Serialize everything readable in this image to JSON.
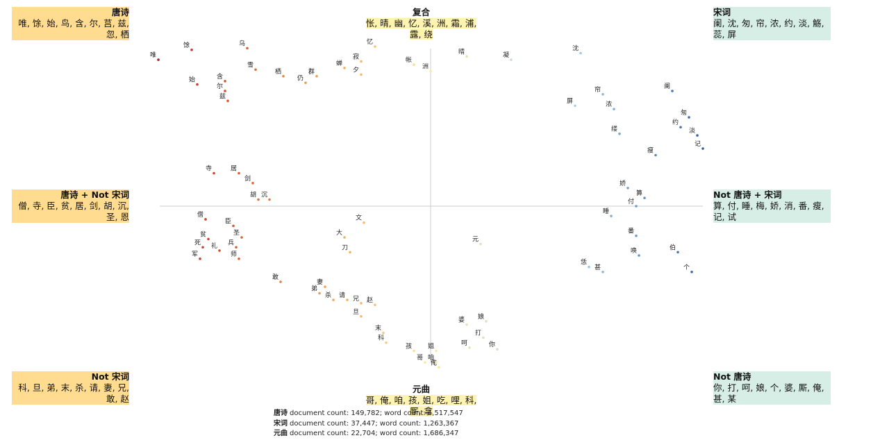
{
  "chart_data": {
    "type": "scatter",
    "xlim": [
      -1,
      1
    ],
    "ylim": [
      -1,
      1
    ],
    "colormap": [
      "#b2182b",
      "#ef8a3c",
      "#fde9a0",
      "#a9d6ea",
      "#2b5aa6"
    ],
    "labels": [
      "唯",
      "馀",
      "乌",
      "始",
      "含",
      "尔",
      "兹",
      "雪",
      "栖",
      "群",
      "仍",
      "蝉",
      "夕",
      "寂",
      "忆",
      "帐",
      "洲",
      "晴",
      "凝",
      "沈",
      "屏",
      "帘",
      "浓",
      "阑",
      "匆",
      "约",
      "淡",
      "记",
      "瘦",
      "算",
      "付",
      "伯",
      "个",
      "番",
      "唤",
      "恁",
      "甚",
      "缕",
      "娇",
      "睡",
      "你",
      "打",
      "呵",
      "娘",
      "婆",
      "俺",
      "咱",
      "哥",
      "姐",
      "孩",
      "科",
      "末",
      "旦",
      "兄",
      "赵",
      "杀",
      "弟",
      "请",
      "敢",
      "妻",
      "僧",
      "寺",
      "臣",
      "贫",
      "居",
      "剑",
      "胡",
      "沉",
      "圣",
      "死",
      "礼",
      "军",
      "兵",
      "师",
      "元",
      "大",
      "刀",
      "文"
    ],
    "x": [
      -0.98,
      -0.86,
      -0.66,
      -0.84,
      -0.74,
      -0.74,
      -0.73,
      -0.63,
      -0.53,
      -0.41,
      -0.45,
      -0.31,
      -0.25,
      -0.25,
      -0.2,
      -0.06,
      0.0,
      0.13,
      0.29,
      0.54,
      0.52,
      0.62,
      0.66,
      0.87,
      0.93,
      0.9,
      0.96,
      0.98,
      0.81,
      0.77,
      0.74,
      0.89,
      0.94,
      0.74,
      0.75,
      0.57,
      0.62,
      0.68,
      0.71,
      0.65,
      0.24,
      0.19,
      0.14,
      0.2,
      0.13,
      0.03,
      0.02,
      -0.02,
      0.02,
      -0.06,
      -0.16,
      -0.17,
      -0.25,
      -0.25,
      -0.2,
      -0.35,
      -0.4,
      -0.3,
      -0.54,
      -0.38,
      -0.81,
      -0.78,
      -0.71,
      -0.8,
      -0.69,
      -0.64,
      -0.62,
      -0.58,
      -0.68,
      -0.82,
      -0.76,
      -0.83,
      -0.7,
      -0.69,
      0.18,
      -0.31,
      -0.29,
      -0.24
    ],
    "values": [
      0.89,
      0.95,
      0.96,
      0.74,
      0.76,
      0.7,
      0.64,
      0.83,
      0.79,
      0.79,
      0.75,
      0.84,
      0.8,
      0.88,
      0.97,
      0.86,
      0.82,
      0.91,
      0.89,
      0.93,
      0.61,
      0.68,
      0.59,
      0.7,
      0.54,
      0.48,
      0.43,
      0.35,
      0.31,
      0.05,
      0.0,
      -0.28,
      -0.4,
      -0.18,
      -0.3,
      -0.37,
      -0.4,
      0.44,
      0.11,
      -0.06,
      -0.87,
      -0.8,
      -0.86,
      -0.7,
      -0.72,
      -0.98,
      -0.95,
      -0.95,
      -0.88,
      -0.88,
      -0.83,
      -0.77,
      -0.67,
      -0.59,
      -0.6,
      -0.57,
      -0.53,
      -0.57,
      -0.46,
      -0.49,
      -0.08,
      0.2,
      -0.12,
      -0.2,
      0.2,
      0.14,
      0.04,
      0.04,
      -0.19,
      -0.25,
      -0.27,
      -0.32,
      -0.25,
      -0.32,
      -0.23,
      -0.19,
      -0.28,
      -0.1
    ],
    "quadrants": [
      {
        "title": "唐诗",
        "terms": "唯, 馀, 始, 鸟, 含, 尔, 莒, 兹, 忽, 栖"
      },
      {
        "title": "复合",
        "terms": "怅, 晴, 幽, 忆, 溪, 洲, 霜, 浦, 露, 绕"
      },
      {
        "title": "宋词",
        "terms": "阑, 沈, 匆, 帘, 浓, 约, 淡, 觞, 蕊, 屏"
      },
      {
        "title": "唐诗 + Not 宋词",
        "terms": "僧, 寺, 臣, 贫, 居, 剑, 胡, 沉, 圣, 恩"
      },
      {
        "title": "Not 唐诗 + 宋词",
        "terms": "算, 付, 睡, 梅, 娇, 消, 番, 瘦, 记, 试"
      },
      {
        "title": "Not 宋词",
        "terms": "科, 旦, 弟, 末, 杀, 请, 妻, 兄, 敢, 赵"
      },
      {
        "title": "元曲",
        "terms": "哥, 俺, 咱, 孩, 姐, 吃, 哩, 科, 厮, 拿"
      },
      {
        "title": "Not 唐诗",
        "terms": "你, 打, 呵, 娘, 个, 婆, 厮, 俺, 甚, 某"
      }
    ],
    "stats": [
      {
        "name": "唐诗",
        "text": "document count: 149,782; word count: 1,517,547"
      },
      {
        "name": "宋词",
        "text": "document count: 37,447; word count: 1,263,367"
      },
      {
        "name": "元曲",
        "text": "document count: 22,704; word count: 1,686,347"
      }
    ]
  }
}
